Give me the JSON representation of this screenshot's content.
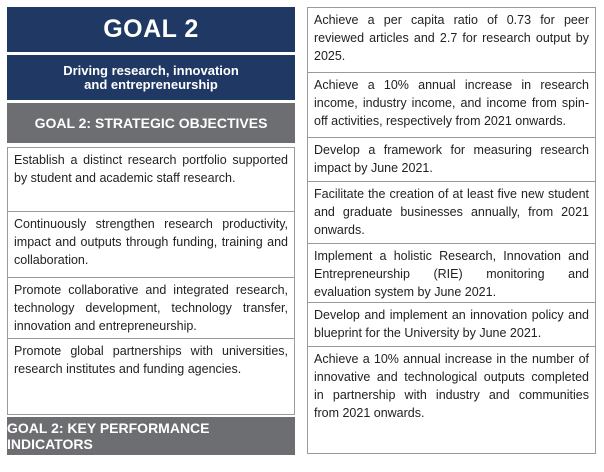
{
  "goal": {
    "title": "GOAL 2",
    "subtitle": "Driving research, innovation\nand entrepreneurship",
    "objectives_heading": "GOAL 2: STRATEGIC OBJECTIVES",
    "kpi_heading": "GOAL 2: KEY PERFORMANCE INDICATORS"
  },
  "objectives": [
    "Establish a distinct research portfolio supported by student and academic staff research.",
    "Continuously strengthen research productivity, impact and outputs through funding, training and collaboration.",
    "Promote collaborative and integrated research, technology development, technology transfer, innovation and entrepreneurship.",
    "Promote global partnerships with universities, research institutes and funding agencies."
  ],
  "kpis": [
    "Achieve a per capita ratio of 0.73 for peer reviewed articles and 2.7 for research output by 2025.",
    "Achieve a 10% annual increase in research income, industry income, and income from spin-off activities, respectively from 2021 onwards.",
    "Develop a framework for measuring research impact by June 2021.",
    "Facilitate the creation of at least five new student and graduate businesses annually, from 2021 onwards.",
    "Implement a holistic Research, Innovation and Entrepreneurship (RIE) monitoring and evaluation system by June 2021.",
    "Develop and implement an innovation policy and blueprint for the University by June 2021.",
    "Achieve a 10% annual increase in the number of innovative and technological outputs completed in partnership with industry and communities from 2021 onwards."
  ]
}
